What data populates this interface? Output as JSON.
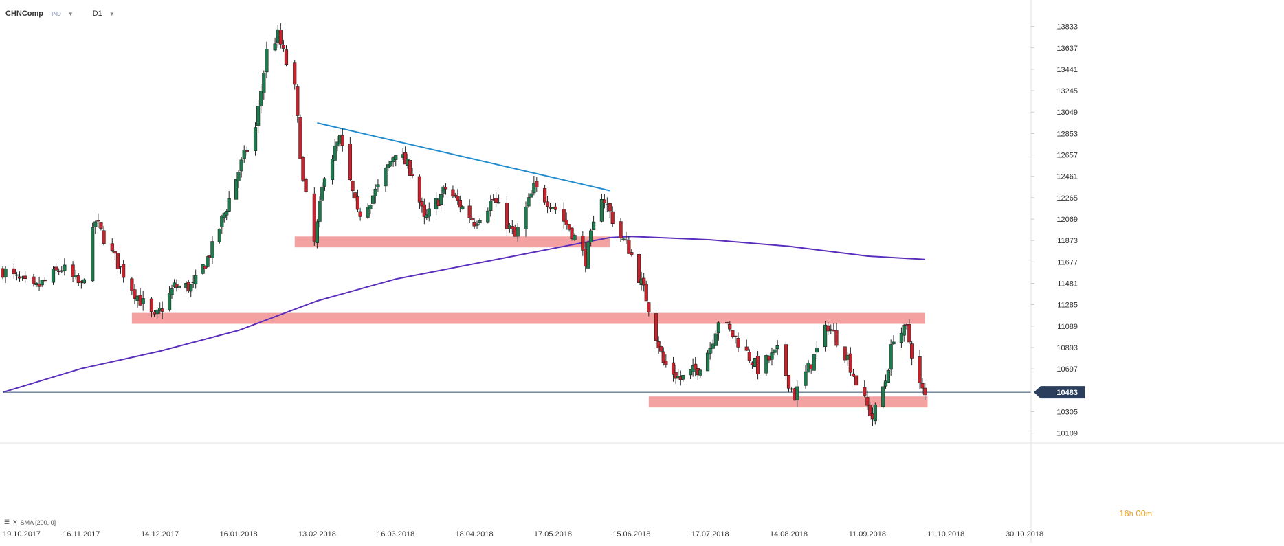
{
  "header": {
    "symbol": "CHNComp",
    "badge": "IND",
    "timeframe": "D1"
  },
  "indicator_legend": "SMA [200, 0]",
  "countdown": {
    "hours": "16",
    "h": "h",
    "minutes": "00",
    "m": "m"
  },
  "colors": {
    "up_candle": "#1e7b4d",
    "down_candle": "#c8232c",
    "trendline": "#1f8ccf",
    "sma": "#5a2dbd",
    "zone": "#f08c8c",
    "price_line": "#2b4a6f",
    "price_tag": "#2b3f5c"
  },
  "chart_data": {
    "type": "candlestick",
    "title": "",
    "ylim": [
      10050,
      13950
    ],
    "y_ticks": [
      13833,
      13637,
      13441,
      13245,
      13049,
      12853,
      12657,
      12461,
      12265,
      12069,
      11873,
      11677,
      11481,
      11285,
      11089,
      10893,
      10697,
      10305,
      10109
    ],
    "x_ticks": [
      "19.10.2017",
      "16.11.2017",
      "14.12.2017",
      "16.01.2018",
      "13.02.2018",
      "16.03.2018",
      "18.04.2018",
      "17.05.2018",
      "15.06.2018",
      "17.07.2018",
      "14.08.2018",
      "11.09.2018",
      "11.10.2018",
      "30.10.2018"
    ],
    "last_price": 10483,
    "waypoints": [
      [
        "19.10.2017",
        11600
      ],
      [
        "30.10.2017",
        11420
      ],
      [
        "09.11.2017",
        11620
      ],
      [
        "16.11.2017",
        11450
      ],
      [
        "21.11.2017",
        12050
      ],
      [
        "27.11.2017",
        11750
      ],
      [
        "05.12.2017",
        11400
      ],
      [
        "12.12.2017",
        11150
      ],
      [
        "20.12.2017",
        11450
      ],
      [
        "28.12.2017",
        11450
      ],
      [
        "05.01.2018",
        11800
      ],
      [
        "12.01.2018",
        12250
      ],
      [
        "22.01.2018",
        12900
      ],
      [
        "26.01.2018",
        13600
      ],
      [
        "30.01.2018",
        13750
      ],
      [
        "05.02.2018",
        13250
      ],
      [
        "08.02.2018",
        12400
      ],
      [
        "12.02.2018",
        11850
      ],
      [
        "16.02.2018",
        12500
      ],
      [
        "22.02.2018",
        12800
      ],
      [
        "01.03.2018",
        12100
      ],
      [
        "09.03.2018",
        12350
      ],
      [
        "16.03.2018",
        12700
      ],
      [
        "23.03.2018",
        12500
      ],
      [
        "28.03.2018",
        12050
      ],
      [
        "06.04.2018",
        12350
      ],
      [
        "18.04.2018",
        12050
      ],
      [
        "25.04.2018",
        12250
      ],
      [
        "03.05.2018",
        11900
      ],
      [
        "10.05.2018",
        12350
      ],
      [
        "17.05.2018",
        12200
      ],
      [
        "24.05.2018",
        11950
      ],
      [
        "29.05.2018",
        11700
      ],
      [
        "04.06.2018",
        12300
      ],
      [
        "11.06.2018",
        11900
      ],
      [
        "14.06.2018",
        11800
      ],
      [
        "21.06.2018",
        11350
      ],
      [
        "28.06.2018",
        10750
      ],
      [
        "05.07.2018",
        10600
      ],
      [
        "12.07.2018",
        10700
      ],
      [
        "17.07.2018",
        10900
      ],
      [
        "20.07.2018",
        11150
      ],
      [
        "27.07.2018",
        10950
      ],
      [
        "03.08.2018",
        10700
      ],
      [
        "10.08.2018",
        10850
      ],
      [
        "16.08.2018",
        10450
      ],
      [
        "22.08.2018",
        10750
      ],
      [
        "28.08.2018",
        11100
      ],
      [
        "04.09.2018",
        10800
      ],
      [
        "08.09.2018",
        10500
      ],
      [
        "13.09.2018",
        10250
      ],
      [
        "18.09.2018",
        10600
      ],
      [
        "21.09.2018",
        11000
      ],
      [
        "26.09.2018",
        11050
      ],
      [
        "01.10.2018",
        10550
      ],
      [
        "03.10.2018",
        10430
      ]
    ],
    "sma_200": [
      [
        "19.10.2017",
        10483
      ],
      [
        "16.11.2017",
        10700
      ],
      [
        "14.12.2017",
        10860
      ],
      [
        "16.01.2018",
        11050
      ],
      [
        "13.02.2018",
        11320
      ],
      [
        "16.03.2018",
        11520
      ],
      [
        "18.04.2018",
        11660
      ],
      [
        "17.05.2018",
        11800
      ],
      [
        "07.06.2018",
        11900
      ],
      [
        "15.06.2018",
        11910
      ],
      [
        "17.07.2018",
        11880
      ],
      [
        "14.08.2018",
        11820
      ],
      [
        "11.09.2018",
        11730
      ],
      [
        "03.10.2018",
        11700
      ]
    ],
    "trendline": [
      [
        "13.02.2018",
        12950
      ],
      [
        "07.06.2018",
        12330
      ]
    ],
    "support_zones": [
      {
        "from": "05.02.2018",
        "to": "07.06.2018",
        "low": 11810,
        "high": 11910
      },
      {
        "from": "04.12.2017",
        "to": "03.10.2018",
        "low": 11110,
        "high": 11210
      },
      {
        "from": "22.06.2018",
        "to": "04.10.2018",
        "low": 10345,
        "high": 10445
      }
    ]
  }
}
